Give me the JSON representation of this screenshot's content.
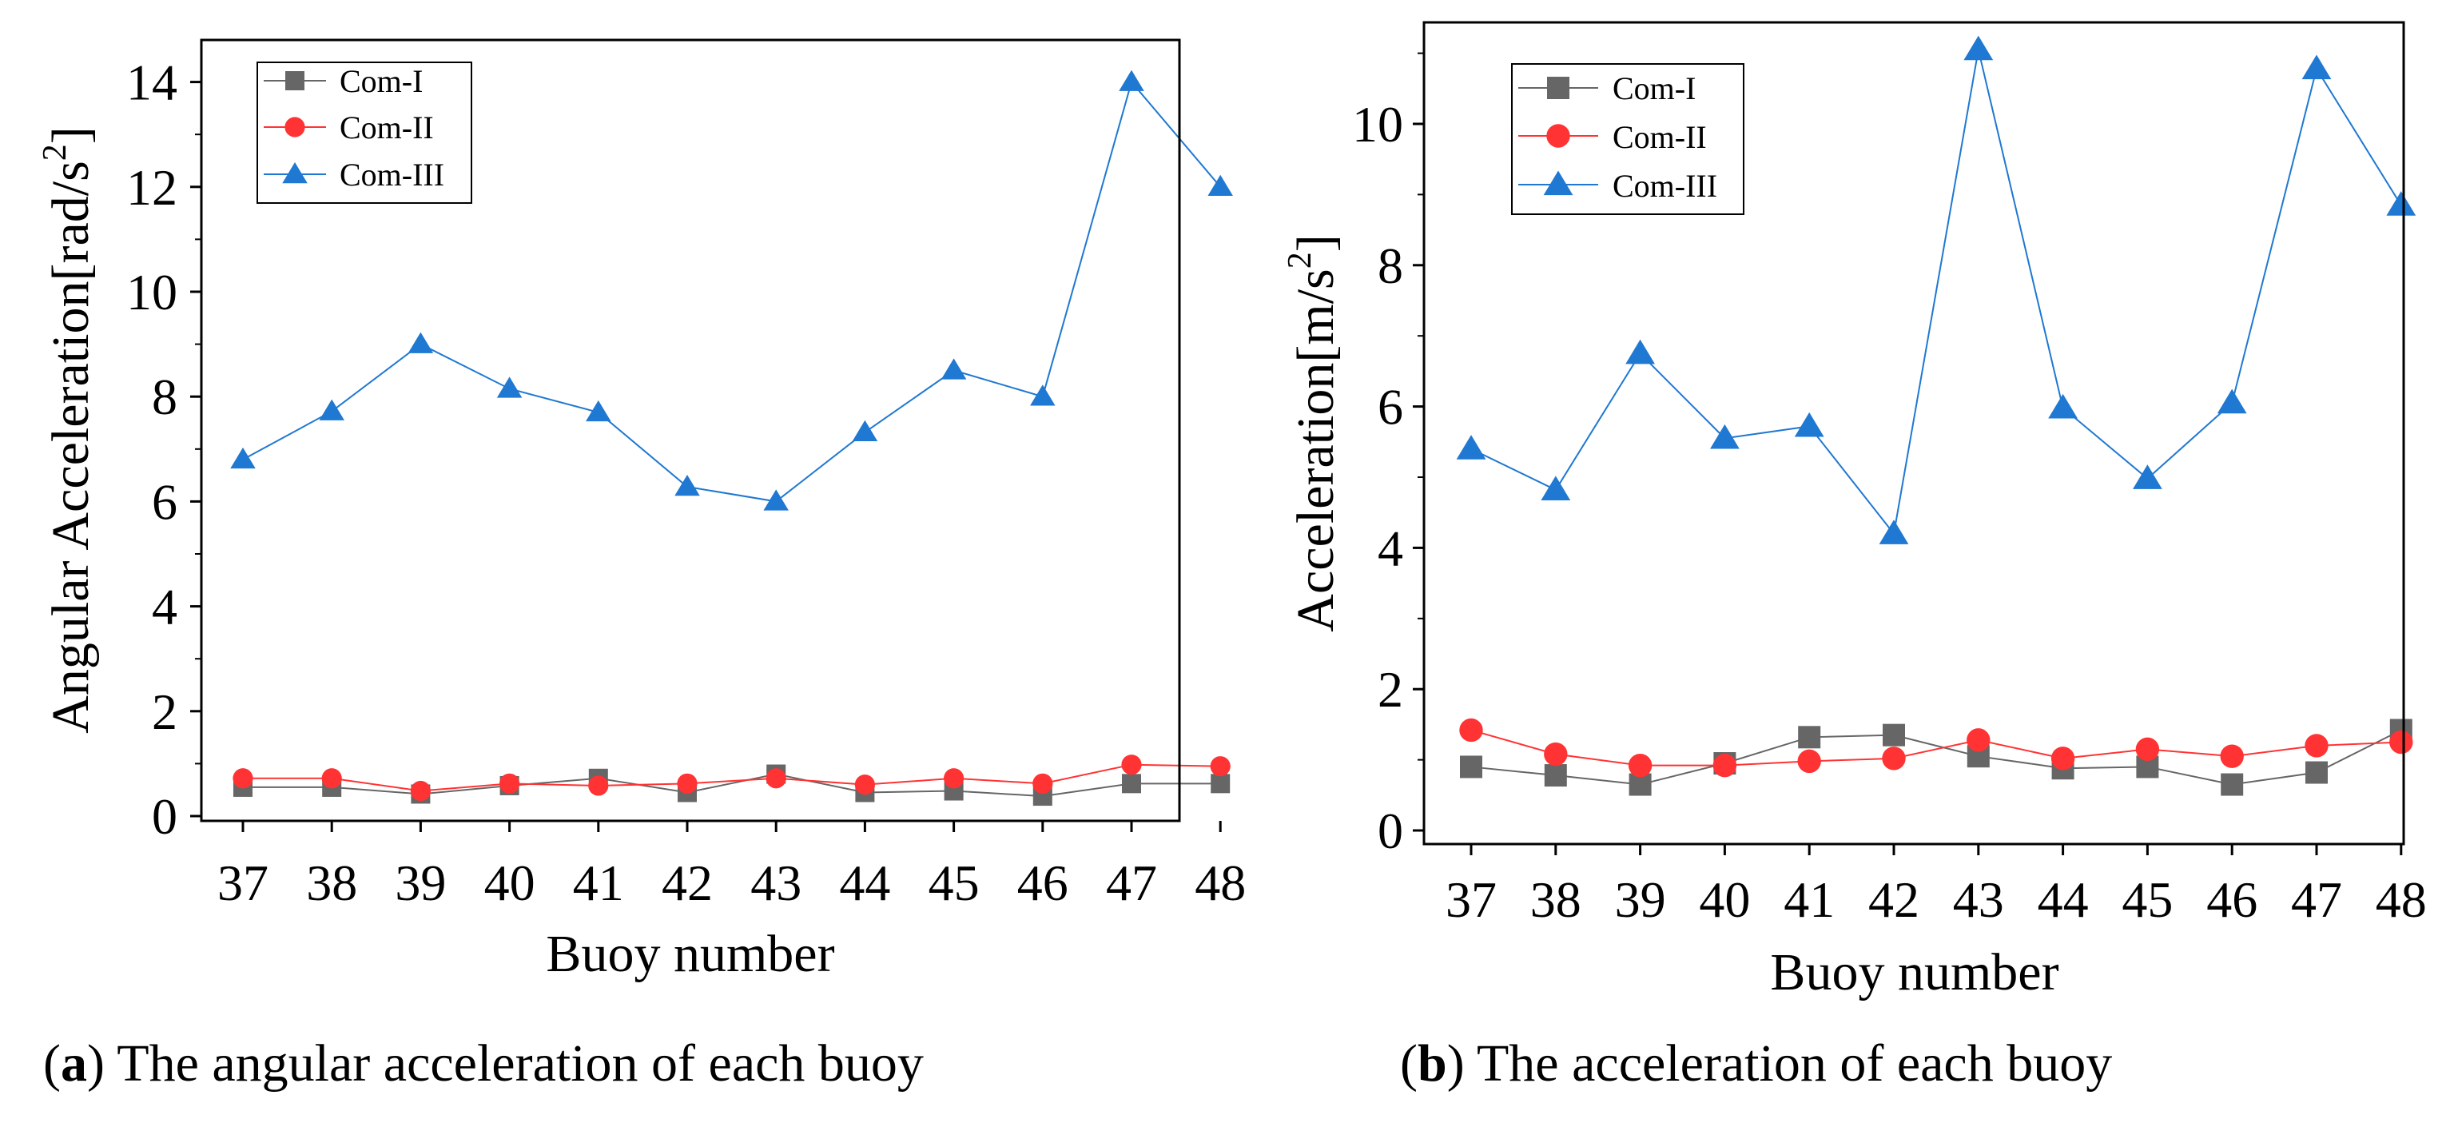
{
  "chart_data": [
    {
      "type": "line",
      "title": "",
      "xlabel": "Buoy number",
      "ylabel": "Angular Acceleration[rad/s²]",
      "ylabel_main": "Angular Acceleration[rad/s",
      "ylabel_sup": "2",
      "ylabel_close": "]",
      "categories": [
        "37",
        "38",
        "39",
        "40",
        "41",
        "42",
        "43",
        "44",
        "45",
        "46",
        "47",
        "48"
      ],
      "ylim": [
        0,
        15
      ],
      "yticks": [
        0,
        2,
        4,
        6,
        8,
        10,
        12,
        14
      ],
      "ytick_labels": [
        "0",
        "2",
        "4",
        "6",
        "8",
        "10",
        "12",
        "14"
      ],
      "legend_position": "top-left",
      "series": [
        {
          "name": "Com-I",
          "color": "#666666",
          "marker": "square",
          "values": [
            0.55,
            0.55,
            0.42,
            0.58,
            0.72,
            0.45,
            0.8,
            0.45,
            0.48,
            0.38,
            0.62,
            0.62
          ]
        },
        {
          "name": "Com-II",
          "color": "#ff3333",
          "marker": "circle",
          "values": [
            0.72,
            0.72,
            0.48,
            0.62,
            0.58,
            0.62,
            0.72,
            0.6,
            0.72,
            0.62,
            0.98,
            0.95
          ]
        },
        {
          "name": "Com-III",
          "color": "#1f78d1",
          "marker": "triangle",
          "values": [
            6.8,
            7.72,
            9.0,
            8.15,
            7.7,
            6.28,
            6.0,
            7.32,
            8.5,
            8.0,
            14.0,
            12.0
          ]
        }
      ]
    },
    {
      "type": "line",
      "title": "",
      "xlabel": "Buoy number",
      "ylabel": "Acceleration[m/s²]",
      "ylabel_main": "Acceleration[m/s",
      "ylabel_sup": "2",
      "ylabel_close": "]",
      "categories": [
        "37",
        "38",
        "39",
        "40",
        "41",
        "42",
        "43",
        "44",
        "45",
        "46",
        "47",
        "48"
      ],
      "ylim": [
        0,
        11.5
      ],
      "yticks": [
        0,
        2,
        4,
        6,
        8,
        10
      ],
      "ytick_labels": [
        "0",
        "2",
        "4",
        "6",
        "8",
        "10"
      ],
      "legend_position": "top-left",
      "series": [
        {
          "name": "Com-I",
          "color": "#666666",
          "marker": "square",
          "values": [
            0.9,
            0.78,
            0.65,
            0.95,
            1.32,
            1.35,
            1.05,
            0.88,
            0.9,
            0.65,
            0.82,
            1.42
          ]
        },
        {
          "name": "Com-II",
          "color": "#ff3333",
          "marker": "circle",
          "values": [
            1.42,
            1.08,
            0.92,
            0.92,
            0.98,
            1.02,
            1.28,
            1.02,
            1.15,
            1.05,
            1.2,
            1.25
          ]
        },
        {
          "name": "Com-III",
          "color": "#1f78d1",
          "marker": "triangle",
          "values": [
            5.4,
            4.82,
            6.75,
            5.55,
            5.72,
            4.2,
            11.05,
            5.98,
            4.98,
            6.05,
            10.78,
            8.85
          ]
        }
      ]
    }
  ],
  "captions": [
    {
      "letter": "a",
      "text": " The angular acceleration of each buoy"
    },
    {
      "letter": "b",
      "text": " The acceleration of each buoy"
    }
  ]
}
